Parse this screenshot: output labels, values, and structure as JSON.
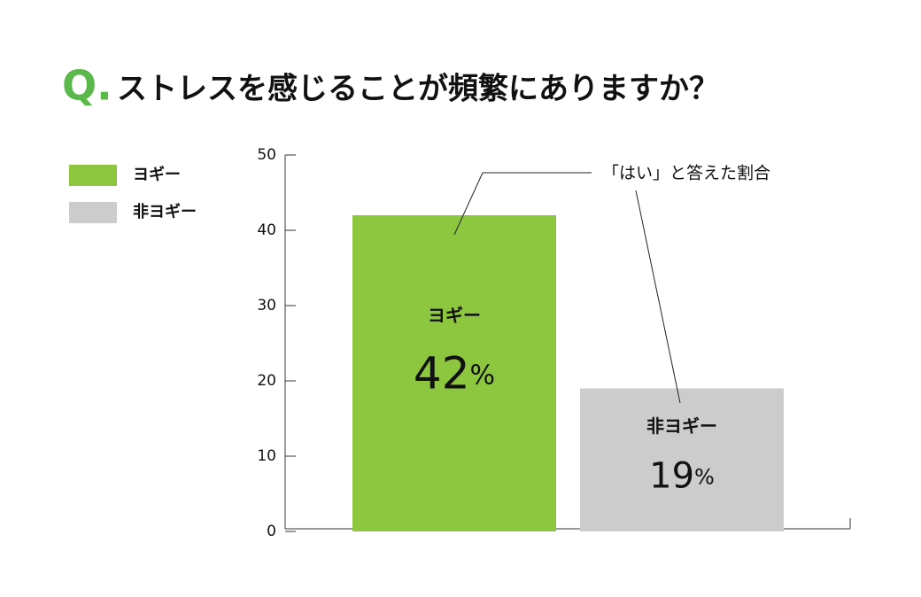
{
  "chart_data": {
    "type": "bar",
    "question_label": "Q.",
    "title": "ストレスを感じることが頻繁にありますか？",
    "categories": [
      "ヨギー",
      "非ヨギー"
    ],
    "values": [
      42,
      19
    ],
    "value_labels": [
      "42%",
      "19%"
    ],
    "colors": [
      "#8dc63f",
      "#cccccc"
    ],
    "question_color": "#5bb84a",
    "annotation": "「はい」と答えた割合",
    "ylim": [
      0,
      50
    ],
    "yticks": [
      0,
      10,
      20,
      30,
      40,
      50
    ],
    "legend": "top-left"
  }
}
